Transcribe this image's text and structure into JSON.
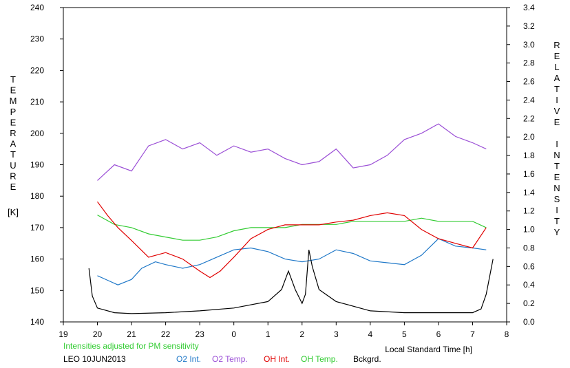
{
  "chart_data": {
    "type": "line",
    "title": "",
    "left_axis": {
      "label_letters": [
        "T",
        "E",
        "M",
        "P",
        "E",
        "R",
        "A",
        "T",
        "U",
        "R",
        "E"
      ],
      "unit": "[K]",
      "ylim": [
        140,
        240
      ],
      "ticks": [
        "140",
        "150",
        "160",
        "170",
        "180",
        "190",
        "200",
        "210",
        "220",
        "230",
        "240"
      ]
    },
    "right_axis": {
      "label_letters_1": [
        "R",
        "E",
        "L",
        "A",
        "T",
        "I",
        "V",
        "E"
      ],
      "label_letters_2": [
        "I",
        "N",
        "T",
        "E",
        "N",
        "S",
        "I",
        "T",
        "Y"
      ],
      "ylim": [
        0.0,
        3.4
      ],
      "ticks": [
        "0.0",
        "0.2",
        "0.4",
        "0.6",
        "0.8",
        "1.0",
        "1.2",
        "1.4",
        "1.6",
        "1.8",
        "2.0",
        "2.2",
        "2.4",
        "2.6",
        "2.8",
        "3.0",
        "3.2",
        "3.4"
      ]
    },
    "x_axis": {
      "label": "Local Standard Time [h]",
      "ticks": [
        "19",
        "20",
        "21",
        "22",
        "23",
        "0",
        "1",
        "2",
        "3",
        "4",
        "5",
        "6",
        "7",
        "8"
      ],
      "xlim": [
        19,
        32
      ]
    },
    "note": "Intensities adjusted for PM sensitivity",
    "station_date": "LEO 10JUN2013",
    "legend": [
      {
        "label": "O2 Int.",
        "color": "#1f78c8"
      },
      {
        "label": "O2 Temp.",
        "color": "#9b4fd6"
      },
      {
        "label": "OH Int.",
        "color": "#e00000"
      },
      {
        "label": "OH Temp.",
        "color": "#33cc33"
      },
      {
        "label": "Bckgrd.",
        "color": "#000000"
      }
    ],
    "series": [
      {
        "name": "O2 Temp.",
        "axis": "left",
        "color": "#9b4fd6",
        "x": [
          20.0,
          20.5,
          21.0,
          21.5,
          22.0,
          22.5,
          23.0,
          23.5,
          24.0,
          24.5,
          25.0,
          25.5,
          26.0,
          26.5,
          27.0,
          27.5,
          28.0,
          28.5,
          29.0,
          29.5,
          30.0,
          30.5,
          31.0,
          31.4
        ],
        "y": [
          185,
          190,
          188,
          196,
          198,
          195,
          197,
          193,
          196,
          194,
          195,
          192,
          190,
          191,
          195,
          189,
          190,
          193,
          198,
          200,
          203,
          199,
          197,
          195
        ]
      },
      {
        "name": "OH Temp.",
        "axis": "left",
        "color": "#33cc33",
        "x": [
          20.0,
          20.5,
          21.0,
          21.5,
          22.0,
          22.5,
          23.0,
          23.5,
          24.0,
          24.5,
          25.0,
          25.5,
          26.0,
          26.5,
          27.0,
          27.5,
          28.0,
          28.5,
          29.0,
          29.5,
          30.0,
          30.5,
          31.0,
          31.4
        ],
        "y": [
          174,
          171,
          170,
          168,
          167,
          166,
          166,
          167,
          169,
          170,
          170,
          170,
          171,
          171,
          171,
          172,
          172,
          172,
          172,
          173,
          172,
          172,
          172,
          170
        ]
      },
      {
        "name": "O2 Int.",
        "axis": "right",
        "color": "#1f78c8",
        "x": [
          20.0,
          20.3,
          20.6,
          21.0,
          21.3,
          21.7,
          22.0,
          22.5,
          23.0,
          23.5,
          24.0,
          24.5,
          25.0,
          25.5,
          26.0,
          26.5,
          27.0,
          27.5,
          28.0,
          28.5,
          29.0,
          29.5,
          30.0,
          30.5,
          31.0,
          31.4
        ],
        "y": [
          0.5,
          0.45,
          0.4,
          0.46,
          0.58,
          0.65,
          0.62,
          0.58,
          0.62,
          0.7,
          0.78,
          0.8,
          0.76,
          0.68,
          0.65,
          0.68,
          0.78,
          0.74,
          0.66,
          0.64,
          0.62,
          0.72,
          0.9,
          0.82,
          0.8,
          0.78
        ]
      },
      {
        "name": "OH Int.",
        "axis": "right",
        "color": "#e00000",
        "x": [
          20.0,
          20.3,
          20.6,
          21.0,
          21.5,
          22.0,
          22.5,
          23.0,
          23.3,
          23.6,
          24.0,
          24.5,
          25.0,
          25.5,
          26.0,
          26.5,
          27.0,
          27.5,
          28.0,
          28.5,
          29.0,
          29.5,
          30.0,
          30.5,
          31.0,
          31.4
        ],
        "y": [
          1.3,
          1.15,
          1.02,
          0.88,
          0.7,
          0.75,
          0.68,
          0.55,
          0.48,
          0.55,
          0.7,
          0.9,
          1.0,
          1.05,
          1.05,
          1.05,
          1.08,
          1.1,
          1.15,
          1.18,
          1.15,
          1.0,
          0.9,
          0.85,
          0.8,
          1.02
        ]
      },
      {
        "name": "Bckgrd.",
        "axis": "right",
        "color": "#000000",
        "x": [
          19.75,
          19.85,
          20.0,
          20.5,
          21.0,
          22.0,
          23.0,
          24.0,
          25.0,
          25.4,
          25.6,
          25.8,
          26.0,
          26.1,
          26.2,
          26.3,
          26.5,
          27.0,
          28.0,
          29.0,
          30.0,
          31.0,
          31.25,
          31.4,
          31.6
        ],
        "y": [
          0.58,
          0.28,
          0.15,
          0.1,
          0.09,
          0.1,
          0.12,
          0.15,
          0.22,
          0.35,
          0.55,
          0.35,
          0.2,
          0.3,
          0.78,
          0.6,
          0.35,
          0.22,
          0.12,
          0.1,
          0.1,
          0.1,
          0.14,
          0.3,
          0.68
        ]
      }
    ]
  }
}
